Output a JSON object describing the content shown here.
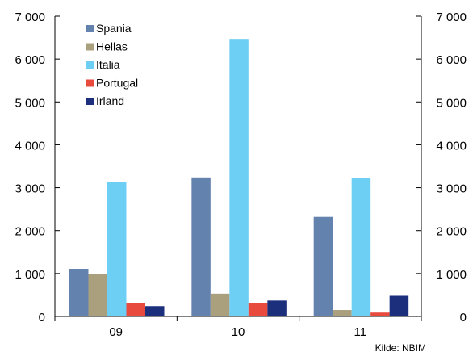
{
  "chart_data": {
    "type": "bar",
    "categories": [
      "09",
      "10",
      "11"
    ],
    "series": [
      {
        "name": "Spania",
        "color": "#6482AE",
        "values": [
          1110,
          3240,
          2320
        ]
      },
      {
        "name": "Hellas",
        "color": "#ABA07E",
        "values": [
          990,
          530,
          150
        ]
      },
      {
        "name": "Italia",
        "color": "#6ECFF5",
        "values": [
          3140,
          6470,
          3220
        ]
      },
      {
        "name": "Portugal",
        "color": "#E84A3E",
        "values": [
          320,
          320,
          90
        ]
      },
      {
        "name": "Irland",
        "color": "#1B2F7D",
        "values": [
          240,
          370,
          480
        ]
      }
    ],
    "ylim": [
      0,
      7000
    ],
    "y_ticks": [
      0,
      1000,
      2000,
      3000,
      4000,
      5000,
      6000,
      7000
    ],
    "y_tick_labels": [
      "0",
      "1 000",
      "2 000",
      "3 000",
      "4 000",
      "5 000",
      "6 000",
      "7 000"
    ],
    "secondary_y_axis": true,
    "grid": false,
    "legend_position": "top-left",
    "source": "Kilde: NBIM"
  }
}
